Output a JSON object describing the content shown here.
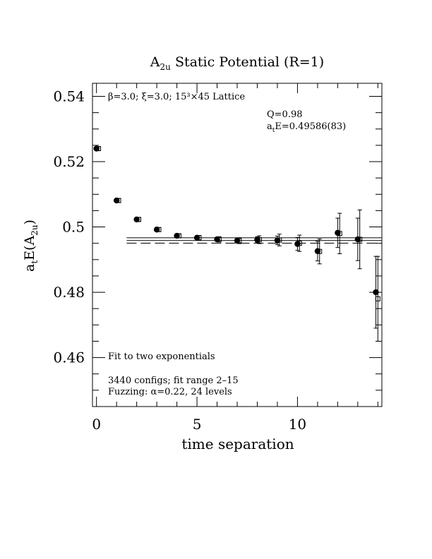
{
  "chart_data": {
    "type": "scatter",
    "title_main": "A",
    "title_sub": "2u",
    "title_rest": " Static Potential (R=1)",
    "xlabel": "time separation",
    "ylabel_main": "a",
    "ylabel_sub1": "t",
    "ylabel_mid": "E(A",
    "ylabel_sub2": "2u",
    "ylabel_end": ")",
    "xlim": [
      -0.2,
      14.2
    ],
    "ylim": [
      0.445,
      0.544
    ],
    "x_ticks": [
      0,
      5,
      10
    ],
    "x_tick_labels": [
      "0",
      "5",
      "10"
    ],
    "y_ticks": [
      0.46,
      0.48,
      0.5,
      0.52,
      0.54
    ],
    "y_tick_labels": [
      "0.46",
      "0.48",
      "0.5",
      "0.52",
      "0.54"
    ],
    "annotations": {
      "lattice": "β=3.0; ξ=3.0; 15³×45 Lattice",
      "q_value": "Q=0.98",
      "energy_prefix": "a",
      "energy_sub": "t",
      "energy_rest": "E=0.49586(83)",
      "fit_desc": "Fit to two exponentials",
      "configs": "3440 configs; fit range 2–15",
      "fuzzing": "Fuzzing: α=0.22, 24 levels"
    },
    "fit": {
      "x_range": [
        1.5,
        14.2
      ],
      "value": 0.49586,
      "error": 0.00083
    },
    "series": [
      {
        "marker": "filled-circle",
        "points": [
          {
            "x": 0,
            "y": 0.524,
            "err": 0.0005
          },
          {
            "x": 1,
            "y": 0.5081,
            "err": 0.0005
          },
          {
            "x": 2,
            "y": 0.5023,
            "err": 0.0005
          },
          {
            "x": 3,
            "y": 0.4992,
            "err": 0.0005
          },
          {
            "x": 4,
            "y": 0.4973,
            "err": 0.0005
          },
          {
            "x": 5,
            "y": 0.4967,
            "err": 0.0006
          },
          {
            "x": 6,
            "y": 0.4962,
            "err": 0.0006
          },
          {
            "x": 7,
            "y": 0.4958,
            "err": 0.0007
          },
          {
            "x": 8,
            "y": 0.4961,
            "err": 0.0009
          },
          {
            "x": 9,
            "y": 0.4959,
            "err": 0.0013
          },
          {
            "x": 10,
            "y": 0.4948,
            "err": 0.002
          },
          {
            "x": 11,
            "y": 0.4926,
            "err": 0.003
          },
          {
            "x": 12,
            "y": 0.4982,
            "err": 0.0045
          },
          {
            "x": 13,
            "y": 0.4962,
            "err": 0.0065
          },
          {
            "x": 13.9,
            "y": 0.48,
            "err": 0.011
          }
        ]
      },
      {
        "marker": "open-square",
        "points": [
          {
            "x": 0.1,
            "y": 0.524,
            "err": 0.0006
          },
          {
            "x": 1.1,
            "y": 0.5081,
            "err": 0.0006
          },
          {
            "x": 2.1,
            "y": 0.5023,
            "err": 0.0006
          },
          {
            "x": 3.1,
            "y": 0.4992,
            "err": 0.0006
          },
          {
            "x": 4.1,
            "y": 0.4973,
            "err": 0.0006
          },
          {
            "x": 5.1,
            "y": 0.4967,
            "err": 0.0007
          },
          {
            "x": 6.1,
            "y": 0.4962,
            "err": 0.0008
          },
          {
            "x": 7.1,
            "y": 0.4958,
            "err": 0.0009
          },
          {
            "x": 8.1,
            "y": 0.4961,
            "err": 0.0012
          },
          {
            "x": 9.1,
            "y": 0.496,
            "err": 0.0018
          },
          {
            "x": 10.1,
            "y": 0.495,
            "err": 0.0025
          },
          {
            "x": 11.1,
            "y": 0.4925,
            "err": 0.0038
          },
          {
            "x": 12.1,
            "y": 0.498,
            "err": 0.0062
          },
          {
            "x": 13.1,
            "y": 0.4962,
            "err": 0.009
          },
          {
            "x": 14.0,
            "y": 0.478,
            "err": 0.013
          }
        ]
      }
    ]
  }
}
